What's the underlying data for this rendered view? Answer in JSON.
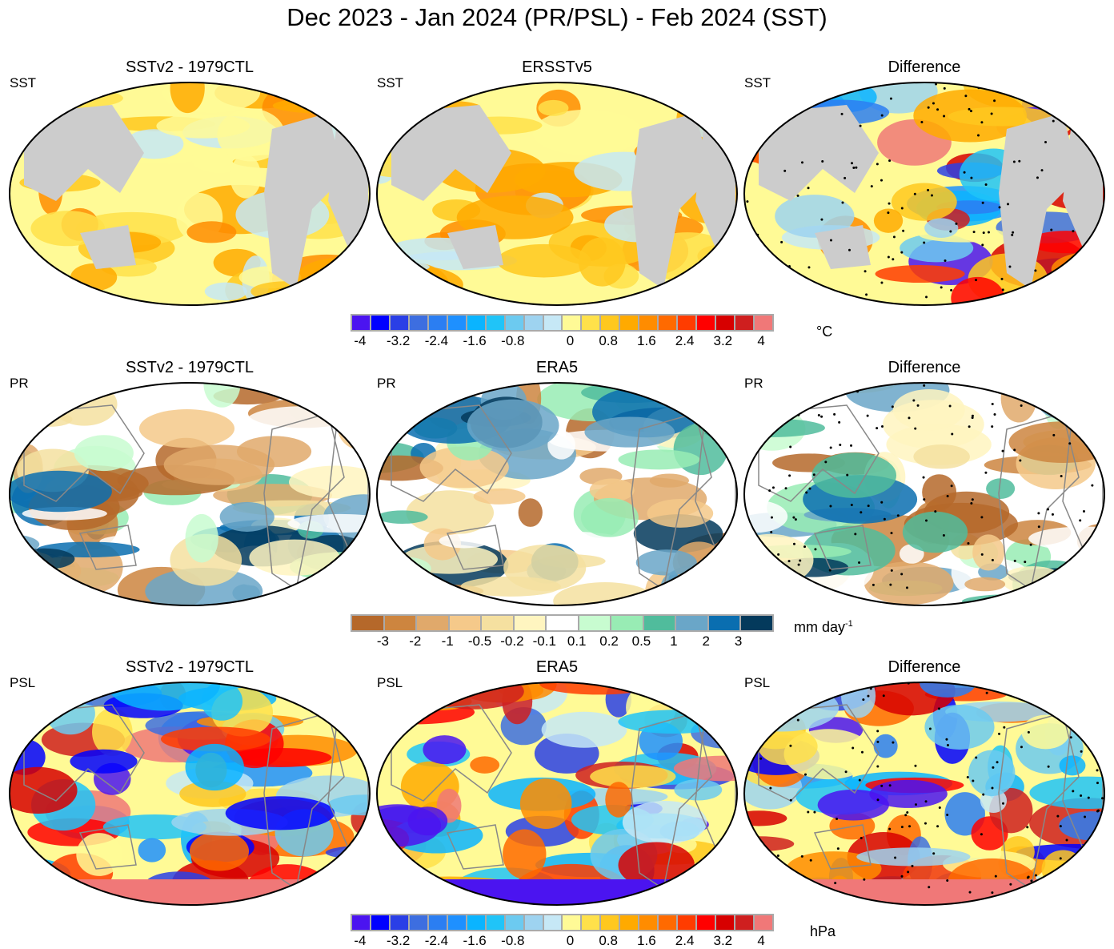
{
  "title": "Dec 2023 - Jan 2024 (PR/PSL) - Feb 2024 (SST)",
  "rows": [
    {
      "variable": "SST",
      "panels": [
        "SSTv2 - 1979CTL",
        "ERSSTv5",
        "Difference"
      ],
      "unit": "°C",
      "land_gray": true,
      "colorbar": {
        "colors": [
          "#4b14f0",
          "#0000ff",
          "#2a3fe6",
          "#3d6ee0",
          "#2b7ef2",
          "#1e90ff",
          "#0ab4ff",
          "#20c4f8",
          "#6ccaf0",
          "#9ed3f0",
          "#c6e8f6",
          "#fffa96",
          "#ffe14a",
          "#ffc81e",
          "#ffaa00",
          "#ff8c00",
          "#ff6a00",
          "#ff3c00",
          "#ff0000",
          "#d70000",
          "#cf1f1f",
          "#f07878"
        ],
        "ticks": [
          "-4",
          "-3.2",
          "-2.4",
          "-1.6",
          "-0.8",
          "0",
          "0.8",
          "1.6",
          "2.4",
          "3.2",
          "4"
        ]
      }
    },
    {
      "variable": "PR",
      "panels": [
        "SSTv2 - 1979CTL",
        "ERA5",
        "Difference"
      ],
      "unit": "mm day",
      "unit_sup": "-1",
      "land_gray": false,
      "colorbar": {
        "colors": [
          "#b5682a",
          "#cd853f",
          "#e0a96b",
          "#f5c98a",
          "#f5e0a0",
          "#fff5c0",
          "#ffffff",
          "#c8fcd0",
          "#98ecb4",
          "#50bc9c",
          "#6aa6c8",
          "#0a6eb0",
          "#043a5c"
        ],
        "ticks": [
          "-3",
          "-2",
          "-1",
          "-0.5",
          "-0.2",
          "-0.1",
          "0.1",
          "0.2",
          "0.5",
          "1",
          "2",
          "3"
        ]
      }
    },
    {
      "variable": "PSL",
      "panels": [
        "SSTv2 - 1979CTL",
        "ERA5",
        "Difference"
      ],
      "unit": "hPa",
      "land_gray": false,
      "colorbar": {
        "colors": [
          "#4b14f0",
          "#0000ff",
          "#2a3fe6",
          "#3d6ee0",
          "#2b7ef2",
          "#1e90ff",
          "#0ab4ff",
          "#20c4f8",
          "#6ccaf0",
          "#9ed3f0",
          "#c6e8f6",
          "#fffa96",
          "#ffe14a",
          "#ffc81e",
          "#ffaa00",
          "#ff8c00",
          "#ff6a00",
          "#ff3c00",
          "#ff0000",
          "#d70000",
          "#cf1f1f",
          "#f07878"
        ],
        "ticks": [
          "-4",
          "-3.2",
          "-2.4",
          "-1.6",
          "-0.8",
          "0",
          "0.8",
          "1.6",
          "2.4",
          "3.2",
          "4"
        ]
      }
    }
  ]
}
